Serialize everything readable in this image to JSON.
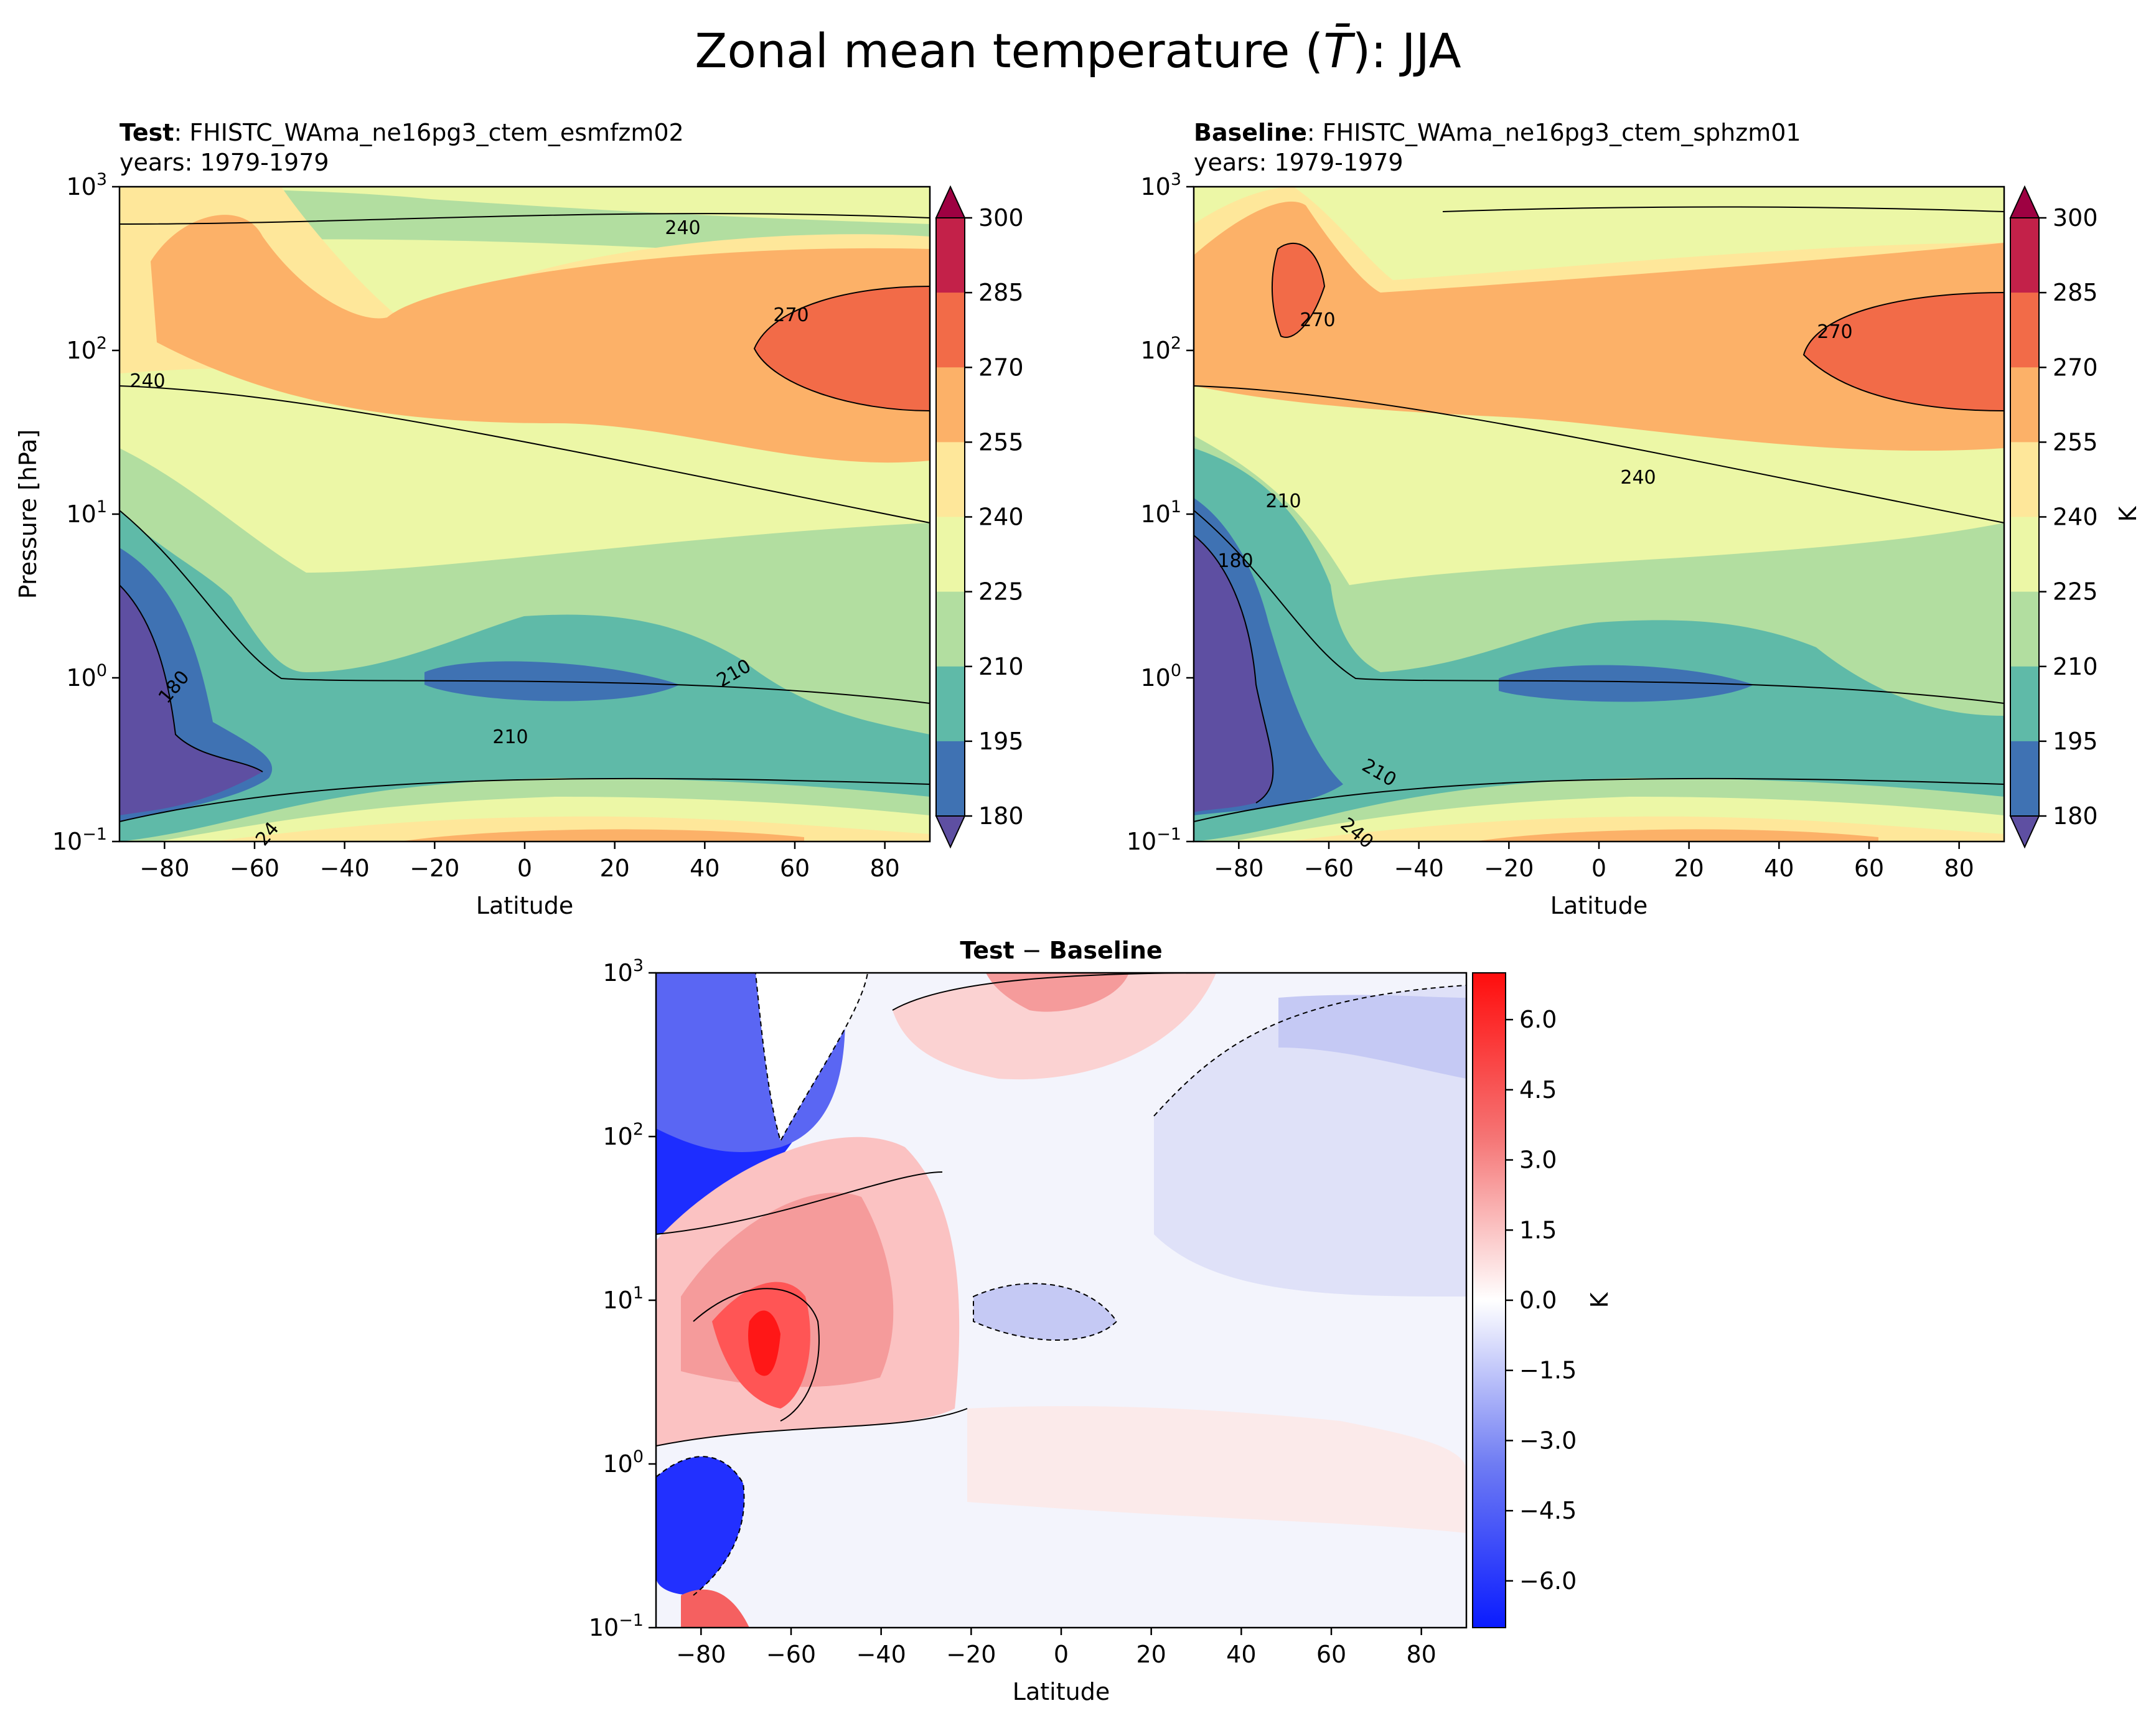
{
  "figure": {
    "suptitle_prefix": "Zonal mean temperature (",
    "suptitle_symbol": "T̄",
    "suptitle_suffix": "): JJA"
  },
  "chart_data": [
    {
      "type": "heatmap",
      "id": "test",
      "title_bold": "Test",
      "title_rest": ": FHISTC_WAma_ne16pg3_ctem_esmfzm02",
      "subtitle": "years: 1979-1979",
      "xlabel": "Latitude",
      "ylabel": "Pressure [hPa]",
      "xlim": [
        -90,
        90
      ],
      "ylim": [
        1000,
        0.1
      ],
      "yscale": "log",
      "x_ticks": [
        "−80",
        "−60",
        "−40",
        "−20",
        "0",
        "20",
        "40",
        "60",
        "80"
      ],
      "y_ticks": [
        {
          "base": "10",
          "exp": "−1"
        },
        {
          "base": "10",
          "exp": "0"
        },
        {
          "base": "10",
          "exp": "1"
        },
        {
          "base": "10",
          "exp": "2"
        },
        {
          "base": "10",
          "exp": "3"
        }
      ],
      "contour_labels": [
        "240",
        "270",
        "240",
        "180",
        "210",
        "210",
        "24"
      ],
      "colorbar": {
        "levels": [
          "300",
          "285",
          "270",
          "255",
          "240",
          "225",
          "210",
          "195",
          "180"
        ],
        "label": ""
      }
    },
    {
      "type": "heatmap",
      "id": "baseline",
      "title_bold": "Baseline",
      "title_rest": ": FHISTC_WAma_ne16pg3_ctem_sphzm01",
      "subtitle": "years: 1979-1979",
      "xlabel": "Latitude",
      "xlim": [
        -90,
        90
      ],
      "ylim": [
        1000,
        0.1
      ],
      "yscale": "log",
      "x_ticks": [
        "−80",
        "−60",
        "−40",
        "−20",
        "0",
        "20",
        "40",
        "60",
        "80"
      ],
      "y_ticks": [
        {
          "base": "10",
          "exp": "−1"
        },
        {
          "base": "10",
          "exp": "0"
        },
        {
          "base": "10",
          "exp": "1"
        },
        {
          "base": "10",
          "exp": "2"
        },
        {
          "base": "10",
          "exp": "3"
        }
      ],
      "contour_labels": [
        "270",
        "270",
        "240",
        "210",
        "180",
        "210",
        "240"
      ],
      "colorbar": {
        "levels": [
          "300",
          "285",
          "270",
          "255",
          "240",
          "225",
          "210",
          "195",
          "180"
        ],
        "label": "K"
      }
    },
    {
      "type": "heatmap",
      "id": "diff",
      "title_bold_a": "Test",
      "title_minus": " − ",
      "title_bold_b": "Baseline",
      "xlabel": "Latitude",
      "xlim": [
        -90,
        90
      ],
      "ylim": [
        1000,
        0.1
      ],
      "yscale": "log",
      "x_ticks": [
        "−80",
        "−60",
        "−40",
        "−20",
        "0",
        "20",
        "40",
        "60",
        "80"
      ],
      "y_ticks": [
        {
          "base": "10",
          "exp": "−1"
        },
        {
          "base": "10",
          "exp": "0"
        },
        {
          "base": "10",
          "exp": "1"
        },
        {
          "base": "10",
          "exp": "2"
        },
        {
          "base": "10",
          "exp": "3"
        }
      ],
      "colorbar": {
        "ticks": [
          "6.0",
          "4.5",
          "3.0",
          "1.5",
          "0.0",
          "−1.5",
          "−3.0",
          "−4.5",
          "−6.0"
        ],
        "range": [
          -7,
          7
        ],
        "label": "K"
      }
    }
  ],
  "colors": {
    "spectral": [
      "#5e4fa2",
      "#3f72b3",
      "#5fbaa8",
      "#b2dea0",
      "#ecf7a6",
      "#fee79a",
      "#fcb168",
      "#f26b48",
      "#c32149",
      "#9e0142"
    ],
    "diff_neg": "#0a1bff",
    "diff_pos": "#ff0d0d"
  }
}
